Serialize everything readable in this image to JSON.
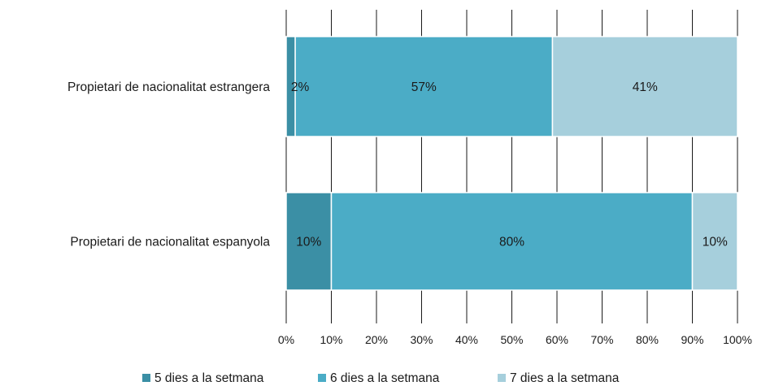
{
  "chart_data": {
    "type": "bar",
    "orientation": "horizontal",
    "stacked": "percent",
    "categories": [
      "Propietari de nacionalitat estrangera",
      "Propietari de nacionalitat espanyola"
    ],
    "series": [
      {
        "name": "5 dies a la setmana",
        "color": "#3b8fa5",
        "values": [
          2,
          10
        ],
        "labels": [
          "2%",
          "10%"
        ]
      },
      {
        "name": "6 dies a la setmana",
        "color": "#4bacc6",
        "values": [
          57,
          80
        ],
        "labels": [
          "57%",
          "80%"
        ]
      },
      {
        "name": "7 dies a la setmana",
        "color": "#a6cfdc",
        "values": [
          41,
          10
        ],
        "labels": [
          "41%",
          "10%"
        ]
      }
    ],
    "xlim": [
      0,
      100
    ],
    "xticks": [
      "0%",
      "10%",
      "20%",
      "30%",
      "40%",
      "50%",
      "60%",
      "70%",
      "80%",
      "90%",
      "100%"
    ],
    "grid": true,
    "legend_position": "bottom"
  }
}
